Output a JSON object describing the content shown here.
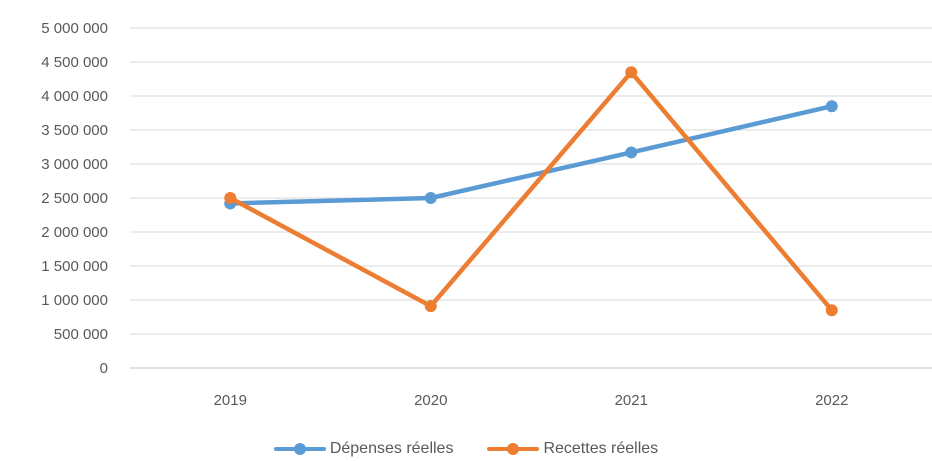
{
  "chart_data": {
    "type": "line",
    "categories": [
      "2019",
      "2020",
      "2021",
      "2022"
    ],
    "series": [
      {
        "name": "Dépenses réelles",
        "color": "#5B9BD5",
        "values": [
          2420000,
          2500000,
          3170000,
          3850000
        ]
      },
      {
        "name": "Recettes réelles",
        "color": "#ED7D31",
        "values": [
          2500000,
          910000,
          4350000,
          850000
        ]
      }
    ],
    "ylim": [
      0,
      5000000
    ],
    "yticks": [
      0,
      500000,
      1000000,
      1500000,
      2000000,
      2500000,
      3000000,
      3500000,
      4000000,
      4500000,
      5000000
    ],
    "ytick_labels": [
      "0",
      "500 000",
      "1 000 000",
      "1 500 000",
      "2 000 000",
      "2 500 000",
      "3 000 000",
      "3 500 000",
      "4 000 000",
      "4 500 000",
      "5 000 000"
    ],
    "grid": true,
    "legend_position": "bottom",
    "title": "",
    "xlabel": "",
    "ylabel": ""
  }
}
